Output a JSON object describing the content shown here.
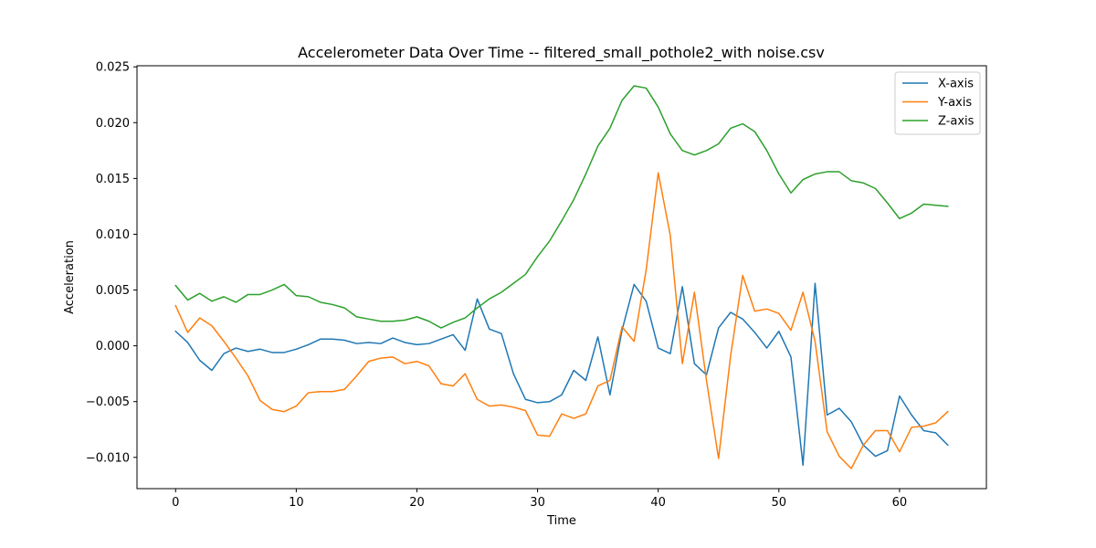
{
  "chart_data": {
    "type": "line",
    "title": "Accelerometer Data Over Time -- filtered_small_pothole2_with noise.csv",
    "xlabel": "Time",
    "ylabel": "Acceleration",
    "xlim": [
      -3.2,
      67.2
    ],
    "ylim": [
      -0.0128,
      0.0251
    ],
    "xticks": [
      0,
      10,
      20,
      30,
      40,
      50,
      60
    ],
    "xtick_labels": [
      "0",
      "10",
      "20",
      "30",
      "40",
      "50",
      "60"
    ],
    "yticks": [
      -0.01,
      -0.005,
      0.0,
      0.005,
      0.01,
      0.015,
      0.02,
      0.025
    ],
    "ytick_labels": [
      "−0.010",
      "−0.005",
      "0.000",
      "0.005",
      "0.010",
      "0.015",
      "0.020",
      "0.025"
    ],
    "grid": false,
    "legend": "top-right",
    "x": [
      0,
      1,
      2,
      3,
      4,
      5,
      6,
      7,
      8,
      9,
      10,
      11,
      12,
      13,
      14,
      15,
      16,
      17,
      18,
      19,
      20,
      21,
      22,
      23,
      24,
      25,
      26,
      27,
      28,
      29,
      30,
      31,
      32,
      33,
      34,
      35,
      36,
      37,
      38,
      39,
      40,
      41,
      42,
      43,
      44,
      45,
      46,
      47,
      48,
      49,
      50,
      51,
      52,
      53,
      54,
      55,
      56,
      57,
      58,
      59,
      60,
      61,
      62,
      63,
      64
    ],
    "series": [
      {
        "name": "X-axis",
        "color": "#1f77b4",
        "values": [
          0.0013,
          0.0003,
          -0.0013,
          -0.0022,
          -0.0007,
          -0.0002,
          -0.0005,
          -0.0003,
          -0.0006,
          -0.0006,
          -0.0003,
          0.0001,
          0.0006,
          0.0006,
          0.0005,
          0.0002,
          0.0003,
          0.0002,
          0.0007,
          0.0003,
          0.0001,
          0.0002,
          0.0006,
          0.001,
          -0.0004,
          0.0042,
          0.0015,
          0.0011,
          -0.0025,
          -0.0048,
          -0.0051,
          -0.005,
          -0.0044,
          -0.0022,
          -0.0031,
          0.0008,
          -0.0044,
          0.0014,
          0.0055,
          0.004,
          -0.0002,
          -0.0007,
          0.0053,
          -0.0016,
          -0.0026,
          0.0016,
          0.003,
          0.0024,
          0.0012,
          -0.0002,
          0.0013,
          -0.001,
          -0.0107,
          0.0056,
          -0.0062,
          -0.0056,
          -0.0068,
          -0.0089,
          -0.0099,
          -0.0094,
          -0.0045,
          -0.0062,
          -0.0076,
          -0.0078,
          -0.0089
        ]
      },
      {
        "name": "Y-axis",
        "color": "#ff7f0e",
        "values": [
          0.0036,
          0.0012,
          0.0025,
          0.0018,
          0.0004,
          -0.0011,
          -0.0027,
          -0.0049,
          -0.0057,
          -0.0059,
          -0.0054,
          -0.0042,
          -0.0041,
          -0.0041,
          -0.0039,
          -0.0027,
          -0.0014,
          -0.0011,
          -0.001,
          -0.0016,
          -0.0014,
          -0.0018,
          -0.0034,
          -0.0036,
          -0.0025,
          -0.0048,
          -0.0054,
          -0.0053,
          -0.0055,
          -0.0058,
          -0.008,
          -0.0081,
          -0.0061,
          -0.0065,
          -0.0061,
          -0.0036,
          -0.0031,
          0.0017,
          0.0004,
          0.0068,
          0.0155,
          0.0099,
          -0.0016,
          0.0048,
          -0.0031,
          -0.0101,
          -0.0009,
          0.0063,
          0.0031,
          0.0033,
          0.0029,
          0.0014,
          0.0048,
          0.0004,
          -0.0077,
          -0.0099,
          -0.011,
          -0.0089,
          -0.0076,
          -0.0076,
          -0.0095,
          -0.0073,
          -0.0072,
          -0.0069,
          -0.0059
        ]
      },
      {
        "name": "Z-axis",
        "color": "#2ca02c",
        "values": [
          0.0054,
          0.0041,
          0.0047,
          0.004,
          0.0044,
          0.0039,
          0.0046,
          0.0046,
          0.005,
          0.0055,
          0.0045,
          0.0044,
          0.0039,
          0.0037,
          0.0034,
          0.0026,
          0.0024,
          0.0022,
          0.0022,
          0.0023,
          0.0026,
          0.0022,
          0.0016,
          0.0021,
          0.0025,
          0.0034,
          0.0042,
          0.0048,
          0.0056,
          0.0064,
          0.008,
          0.0094,
          0.0112,
          0.0131,
          0.0154,
          0.0179,
          0.0195,
          0.022,
          0.0233,
          0.0231,
          0.0214,
          0.019,
          0.0175,
          0.0171,
          0.0175,
          0.0181,
          0.0195,
          0.0199,
          0.0192,
          0.0175,
          0.0154,
          0.0137,
          0.0149,
          0.0154,
          0.0156,
          0.0156,
          0.0148,
          0.0146,
          0.0141,
          0.0128,
          0.0114,
          0.0119,
          0.0127,
          0.0126,
          0.0125
        ]
      }
    ]
  }
}
